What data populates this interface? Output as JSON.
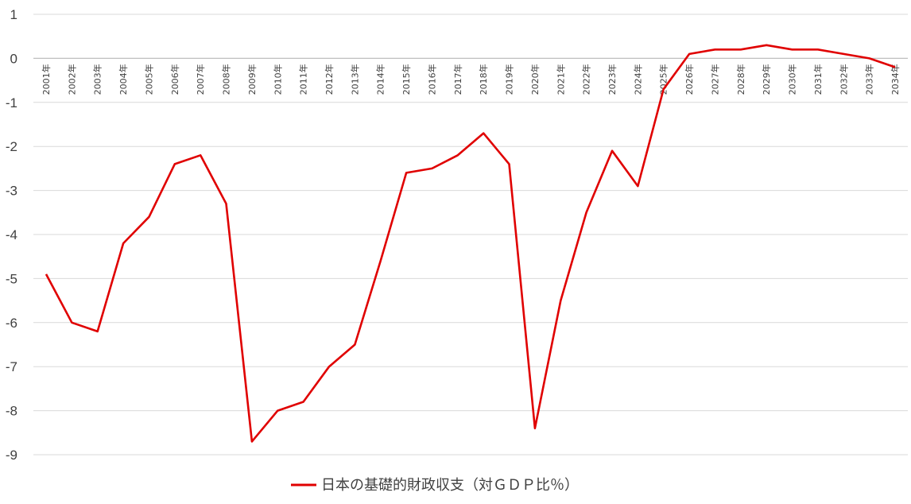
{
  "chart_data": {
    "type": "line",
    "title": "",
    "xlabel": "",
    "ylabel": "",
    "ylim": [
      -9,
      1
    ],
    "yticks": [
      "1",
      "0",
      "-1",
      "-2",
      "-3",
      "-4",
      "-5",
      "-6",
      "-7",
      "-8",
      "-9"
    ],
    "categories": [
      "2001年",
      "2002年",
      "2003年",
      "2004年",
      "2005年",
      "2006年",
      "2007年",
      "2008年",
      "2009年",
      "2010年",
      "2011年",
      "2012年",
      "2013年",
      "2014年",
      "2015年",
      "2016年",
      "2017年",
      "2018年",
      "2019年",
      "2020年",
      "2021年",
      "2022年",
      "2023年",
      "2024年",
      "2025年",
      "2026年",
      "2027年",
      "2028年",
      "2029年",
      "2030年",
      "2031年",
      "2032年",
      "2033年",
      "2034年"
    ],
    "series": [
      {
        "name": "日本の基礎的財政収支（対ＧＤＰ比％）",
        "color": "#e00000",
        "values": [
          -4.9,
          -6.0,
          -6.2,
          -4.2,
          -3.6,
          -2.4,
          -2.2,
          -3.3,
          -8.7,
          -8.0,
          -7.8,
          -7.0,
          -6.5,
          -4.6,
          -2.6,
          -2.5,
          -2.2,
          -1.7,
          -2.4,
          -8.4,
          -5.5,
          -3.5,
          -2.1,
          -2.9,
          -0.7,
          0.1,
          0.2,
          0.2,
          0.3,
          0.2,
          0.2,
          0.1,
          0.0,
          -0.2
        ]
      }
    ],
    "grid": true,
    "legend_position": "bottom"
  }
}
